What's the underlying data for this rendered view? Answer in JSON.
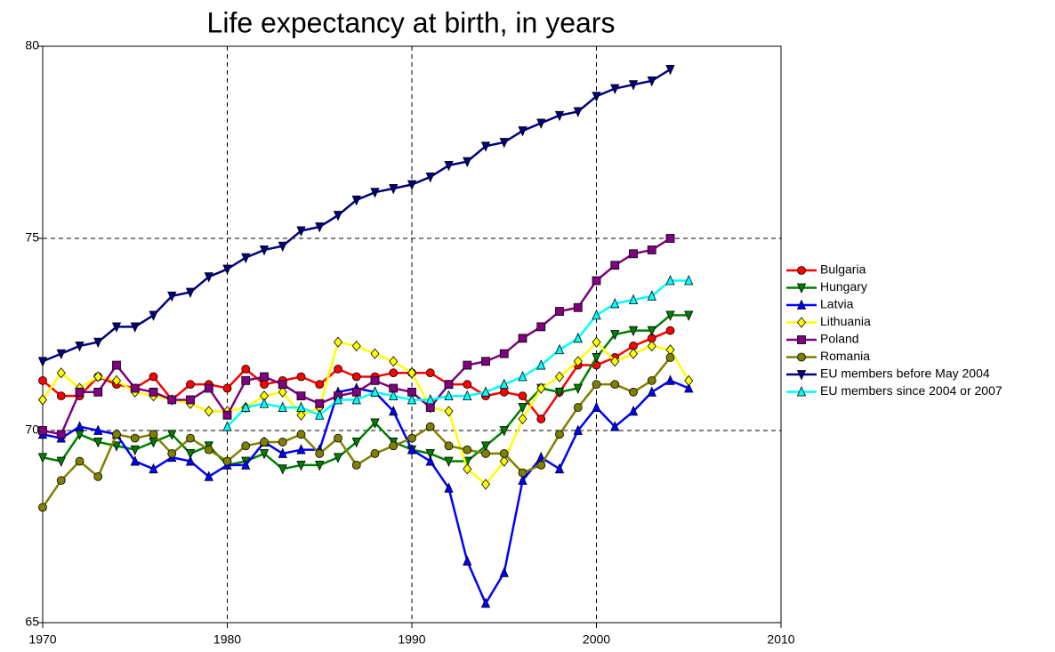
{
  "chart_data": {
    "type": "line",
    "title": "Life expectancy at birth, in years",
    "x": [
      1970,
      1971,
      1972,
      1973,
      1974,
      1975,
      1976,
      1977,
      1978,
      1979,
      1980,
      1981,
      1982,
      1983,
      1984,
      1985,
      1986,
      1987,
      1988,
      1989,
      1990,
      1991,
      1992,
      1993,
      1994,
      1995,
      1996,
      1997,
      1998,
      1999,
      2000,
      2001,
      2002,
      2003,
      2004,
      2005
    ],
    "xlim": [
      1970,
      2010
    ],
    "xticks": [
      1970,
      1980,
      1990,
      2000,
      2010
    ],
    "ylim": [
      65,
      80
    ],
    "yticks": [
      65,
      70,
      75,
      80
    ],
    "grid": true,
    "legend": "right",
    "series": [
      {
        "name": "Bulgaria",
        "color": "#ff0000",
        "marker": "circle",
        "values": [
          71.3,
          70.9,
          70.9,
          71.4,
          71.2,
          71.1,
          71.4,
          70.8,
          71.2,
          71.2,
          71.1,
          71.6,
          71.2,
          71.3,
          71.4,
          71.2,
          71.6,
          71.4,
          71.4,
          71.5,
          71.5,
          71.5,
          71.2,
          71.2,
          70.9,
          71.0,
          70.9,
          70.3,
          71.0,
          71.7,
          71.7,
          71.9,
          72.2,
          72.4,
          72.6,
          null
        ]
      },
      {
        "name": "Hungary",
        "color": "#008000",
        "marker": "triangle-down",
        "values": [
          69.3,
          69.2,
          69.9,
          69.7,
          69.6,
          69.5,
          69.7,
          69.9,
          69.4,
          69.6,
          69.1,
          69.2,
          69.4,
          69.0,
          69.1,
          69.1,
          69.3,
          69.7,
          70.2,
          69.7,
          69.5,
          69.4,
          69.2,
          69.2,
          69.6,
          70.0,
          70.6,
          71.1,
          71.0,
          71.1,
          71.9,
          72.5,
          72.6,
          72.6,
          73.0,
          73.0
        ]
      },
      {
        "name": "Latvia",
        "color": "#0000ff",
        "marker": "triangle-up",
        "values": [
          69.9,
          69.8,
          70.1,
          70.0,
          69.9,
          69.2,
          69.0,
          69.3,
          69.2,
          68.8,
          69.1,
          69.1,
          69.7,
          69.4,
          69.5,
          69.5,
          71.0,
          71.1,
          71.0,
          70.5,
          69.5,
          69.2,
          68.5,
          66.6,
          65.5,
          66.3,
          68.7,
          69.3,
          69.0,
          70.0,
          70.6,
          70.1,
          70.5,
          71.0,
          71.3,
          71.1
        ]
      },
      {
        "name": "Lithuania",
        "color": "#ffff00",
        "marker": "diamond",
        "values": [
          70.8,
          71.5,
          71.1,
          71.4,
          71.3,
          71.0,
          70.9,
          70.8,
          70.7,
          70.5,
          70.5,
          70.6,
          70.9,
          71.0,
          70.4,
          70.6,
          72.3,
          72.2,
          72.0,
          71.8,
          71.5,
          70.6,
          70.5,
          69.0,
          68.6,
          69.2,
          70.3,
          71.1,
          71.4,
          71.8,
          72.3,
          71.8,
          72.0,
          72.2,
          72.1,
          71.3
        ]
      },
      {
        "name": "Poland",
        "color": "#800080",
        "marker": "square",
        "values": [
          70.0,
          69.9,
          71.0,
          71.0,
          71.7,
          71.1,
          71.0,
          70.8,
          70.8,
          71.1,
          70.4,
          71.3,
          71.4,
          71.2,
          70.9,
          70.7,
          70.9,
          71.0,
          71.3,
          71.1,
          71.0,
          70.6,
          71.2,
          71.7,
          71.8,
          72.0,
          72.4,
          72.7,
          73.1,
          73.2,
          73.9,
          74.3,
          74.6,
          74.7,
          75.0,
          null
        ]
      },
      {
        "name": "Romania",
        "color": "#808000",
        "marker": "circle",
        "values": [
          68.0,
          68.7,
          69.2,
          68.8,
          69.9,
          69.8,
          69.9,
          69.4,
          69.8,
          69.5,
          69.2,
          69.6,
          69.7,
          69.7,
          69.9,
          69.4,
          69.8,
          69.1,
          69.4,
          69.6,
          69.8,
          70.1,
          69.6,
          69.5,
          69.4,
          69.4,
          68.9,
          69.1,
          69.9,
          70.6,
          71.2,
          71.2,
          71.0,
          71.3,
          71.9,
          null
        ]
      },
      {
        "name": "EU members before May 2004",
        "color": "#000080",
        "marker": "triangle-down",
        "values": [
          71.8,
          72.0,
          72.2,
          72.3,
          72.7,
          72.7,
          73.0,
          73.5,
          73.6,
          74.0,
          74.2,
          74.5,
          74.7,
          74.8,
          75.2,
          75.3,
          75.6,
          76.0,
          76.2,
          76.3,
          76.4,
          76.6,
          76.9,
          77.0,
          77.4,
          77.5,
          77.8,
          78.0,
          78.2,
          78.3,
          78.7,
          78.9,
          79.0,
          79.1,
          79.4,
          null
        ]
      },
      {
        "name": "EU members since 2004 or 2007",
        "color": "#00ffff",
        "marker": "triangle-up",
        "values": [
          null,
          null,
          null,
          null,
          null,
          null,
          null,
          null,
          null,
          null,
          70.1,
          70.6,
          70.7,
          70.6,
          70.6,
          70.4,
          70.8,
          70.8,
          71.0,
          70.9,
          70.8,
          70.8,
          70.9,
          70.9,
          71.0,
          71.2,
          71.4,
          71.7,
          72.1,
          72.4,
          73.0,
          73.3,
          73.4,
          73.5,
          73.9,
          73.9
        ]
      }
    ]
  }
}
